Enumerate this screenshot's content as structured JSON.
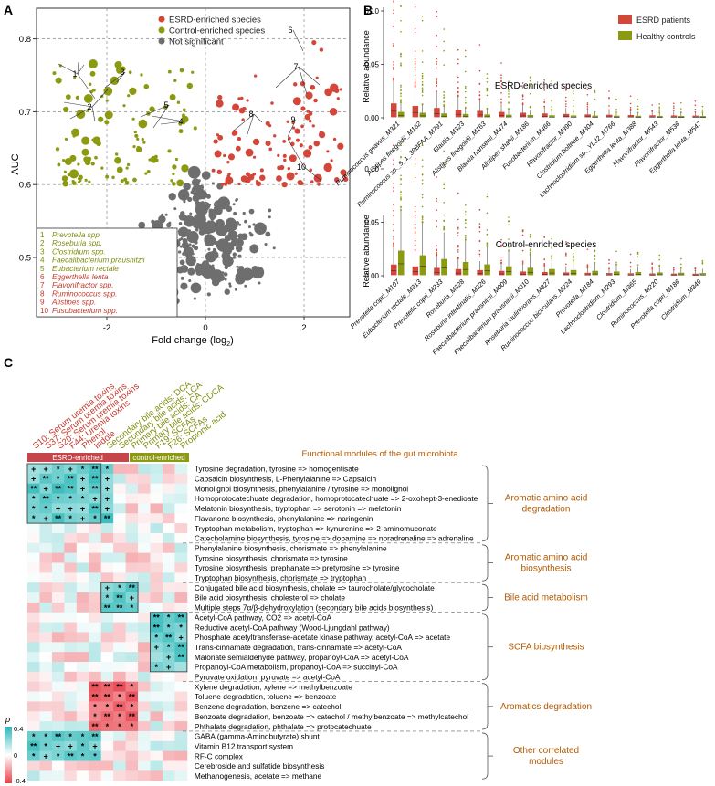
{
  "panel_letters": {
    "a": "A",
    "b": "B",
    "c": "C"
  },
  "colors": {
    "esrd": "#d2473a",
    "control": "#8c9a12",
    "ns": "#6e6e6e",
    "legend_text_esrd": "#c0392b",
    "legend_text_control": "#7f8c0d",
    "module_text": "#b35a00",
    "heat_pos": "#2ab7b7",
    "heat_neg": "#e8404a"
  },
  "panel_a": {
    "legend": {
      "esrd": "ESRD-enriched species",
      "control": "Control-enriched species",
      "ns": "Not significant"
    },
    "xlabel_main": "Fold change (log",
    "xlabel_sub": "2",
    "xlabel_close": ")",
    "ylabel": "AUC",
    "xticks": [
      "-2",
      "0",
      "2"
    ],
    "yticks": [
      "0.5",
      "0.6",
      "0.7",
      "0.8"
    ],
    "genus_key": [
      {
        "n": "1",
        "name": "Prevotella spp.",
        "group": "control"
      },
      {
        "n": "2",
        "name": "Roseburia spp.",
        "group": "control"
      },
      {
        "n": "3",
        "name": "Clostridium spp.",
        "group": "control"
      },
      {
        "n": "4",
        "name": "Faecalibacterium prausnitzii",
        "group": "control"
      },
      {
        "n": "5",
        "name": "Eubacterium rectale",
        "group": "control"
      },
      {
        "n": "6",
        "name": "Eggerthella lenta",
        "group": "esrd"
      },
      {
        "n": "7",
        "name": "Flavonifractor spp.",
        "group": "esrd"
      },
      {
        "n": "8",
        "name": "Ruminococcus spp.",
        "group": "esrd"
      },
      {
        "n": "9",
        "name": "Alistipes spp.",
        "group": "esrd"
      },
      {
        "n": "10",
        "name": "Fusobacterium spp.",
        "group": "esrd"
      }
    ],
    "point_labels": [
      "1",
      "2",
      "3",
      "4",
      "5",
      "6",
      "7",
      "8",
      "9",
      "10"
    ]
  },
  "panel_b": {
    "legend": {
      "esrd": "ESRD patients",
      "control": "Healthy controls"
    },
    "ylabel": "Relative abundance",
    "yticks": [
      "0.00",
      "0.05",
      "0.10"
    ],
    "top_title": "ESRD-enriched species",
    "bottom_title": "Control-enriched species",
    "top_species": [
      "Ruminococcus gnavus_M321",
      "Alistipes finegoldii_M162",
      "Ruminococcus sp._5_1_39BFAA_M791",
      "Blautia_M323",
      "Alistipes finegoldii_M163",
      "Blautia hansenii_M474",
      "Alistipes shahii_M186",
      "Fusobacterium_M466",
      "Flavonifractor_M390",
      "Clostridium bolteae_M304",
      "Lachnoclostridium sp._YL32_M766",
      "Eggerthella lenta_M388",
      "Flavonifractor_M543",
      "Flavonifractor_M536",
      "Eggerthella lenta_M547"
    ],
    "bottom_species": [
      "Prevotella copri_M107",
      "Eubacterium rectale_M313",
      "Prevotella copri_M233",
      "Roseburia_M328",
      "Roseburia intestinalis_M326",
      "Faecalibacterium prausnitzii_M009",
      "Faecalibacterium prausnitzii_M010",
      "Roseburia inulinivorans_M327",
      "Ruminococcus bicirculans_M224",
      "Prevotella_M184",
      "Lachnoclostridium_M293",
      "Clostridium_M365",
      "Ruminococcus_M220",
      "Prevotella copri_M186",
      "Clostridium_M349"
    ]
  },
  "panel_c": {
    "column_labels": [
      {
        "text": "S10: Serum uremia toxins",
        "group": "esrd"
      },
      {
        "text": "S37: Serum uremia toxins",
        "group": "esrd"
      },
      {
        "text": "S20: Serum uremia toxins",
        "group": "esrd"
      },
      {
        "text": "F44: Uremia toxins",
        "group": "esrd"
      },
      {
        "text": "Phenol",
        "group": "esrd"
      },
      {
        "text": "Indole",
        "group": "esrd"
      },
      {
        "text": "Secondary bile acids: DCA",
        "group": "control"
      },
      {
        "text": "Secondary bile acids: LCA",
        "group": "control"
      },
      {
        "text": "Primary bile acids: CA",
        "group": "control"
      },
      {
        "text": "Primary bile acids: CDCA",
        "group": "control"
      },
      {
        "text": "F19: SCFAs",
        "group": "control"
      },
      {
        "text": "F26: SCFAs",
        "group": "control"
      },
      {
        "text": "Propionic acid",
        "group": "control"
      }
    ],
    "header_esrd": "ESRD-enriched",
    "header_control": "control-enriched",
    "title": "Functional modules of the gut microbiota",
    "rows": [
      "Tyrosine degradation, tyrosine => homogentisate",
      "Capsaicin biosynthesis, L-Phenylalanine => Capsaicin",
      "Monolignol biosynthesis, phenylalanine / tyrosine => monolignol",
      "Homoprotocatechuate degradation, homoprotocatechuate => 2-oxohept-3-enedioate",
      "Melatonin biosynthesis, tryptophan => serotonin => melatonin",
      "Flavanone biosynthesis, phenylalanine => naringenin",
      "Tryptophan metabolism, tryptophan => kynurenine => 2-aminomuconate",
      "Catecholamine biosynthesis, tyrosine => dopamine => noradrenaline => adrenaline",
      "Phenylalanine biosynthesis, chorismate => phenylalanine",
      "Tyrosine biosynthesis, chorismate => tyrosine",
      "Tyrosine biosynthesis, prephanate => pretyrosine => tyrosine",
      "Tryptophan biosynthesis, chorismate => tryptophan",
      "Conjugated bile acid biosynthesis, cholate => taurocholate/glycocholate",
      "Bile acid biosynthesis, cholesterol => cholate",
      "Multiple steps 7α/β-dehydroxylation (secondary bile acids biosynthesis)",
      "Acetyl-CoA pathway, CO2 => acetyl-CoA",
      "Reductive acetyl-CoA pathway (Wood-Ljungdahl pathway)",
      "Phosphate acetyltransferase-acetate kinase pathway, acetyl-CoA => acetate",
      "Trans-cinnamate degradation, trans-cinnamate => acetyl-CoA",
      "Malonate semialdehyde pathway, propanoyl-CoA => acetyl-CoA",
      "Propanoyl-CoA metabolism, propanoyl-CoA => succinyl-CoA",
      "Pyruvate oxidation, pyruvate => acetyl-CoA",
      "Xylene degradation, xylene => methylbenzoate",
      "Toluene degradation, toluene => benzoate",
      "Benzene degradation, benzene => catechol",
      "Benzoate degradation, benzoate => catechol / methylbenzoate => methylcatechol",
      "Phthalate degradation, phthalate => protocatechuate",
      "GABA (gamma-Aminobutyrate) shunt",
      "Vitamin B12 transport system",
      "RF-C complex",
      "Cerebroside and sulfatide biosynthesis",
      "Methanogenesis, acetate => methane"
    ],
    "modules": [
      {
        "name_lines": [
          "Aromatic amino acid",
          "degradation"
        ],
        "start": 0,
        "end": 7
      },
      {
        "name_lines": [
          "Aromatic amino acid",
          "biosynthesis"
        ],
        "start": 8,
        "end": 11
      },
      {
        "name_lines": [
          "Bile acid metabolism"
        ],
        "start": 12,
        "end": 14
      },
      {
        "name_lines": [
          "SCFA biosynthesis"
        ],
        "start": 15,
        "end": 21
      },
      {
        "name_lines": [
          "Aromatics degradation"
        ],
        "start": 22,
        "end": 26
      },
      {
        "name_lines": [
          "Other correlated",
          "modules"
        ],
        "start": 27,
        "end": 31
      }
    ],
    "colorbar": {
      "title": "ρ",
      "ticks": [
        "0.4",
        "0",
        "-0.4"
      ]
    }
  }
}
